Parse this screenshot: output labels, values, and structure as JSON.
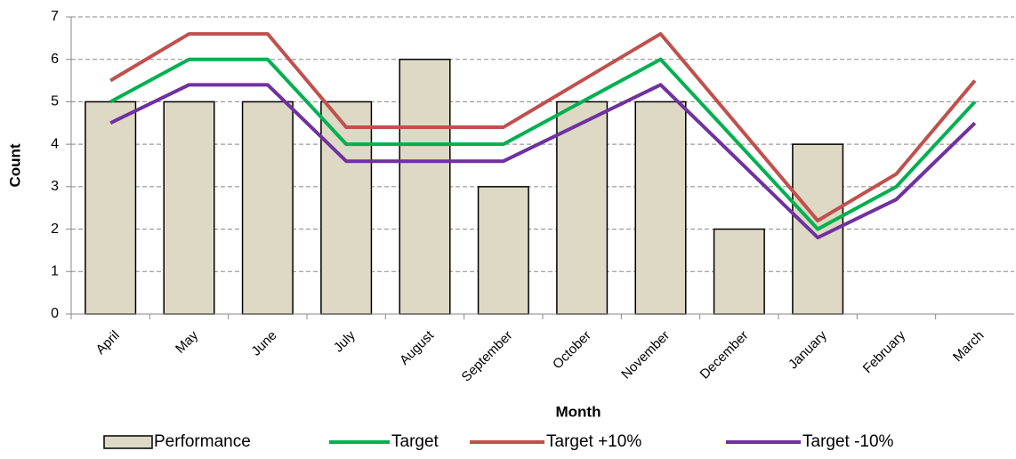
{
  "chart_data": {
    "type": "bar",
    "x_label": "Month",
    "y_label": "Count",
    "categories": [
      "April",
      "May",
      "June",
      "July",
      "August",
      "September",
      "October",
      "November",
      "December",
      "January",
      "February",
      "March"
    ],
    "series": [
      {
        "name": "Performance",
        "type": "bar",
        "color": "#ddd9c4",
        "values": [
          5,
          5,
          5,
          5,
          6,
          3,
          5,
          5,
          2,
          4,
          null,
          null
        ]
      },
      {
        "name": "Target",
        "type": "line",
        "color": "#00b050",
        "values": [
          5,
          6,
          6,
          4,
          4,
          4,
          5,
          6,
          4,
          2,
          3,
          5
        ]
      },
      {
        "name": "Target +10%",
        "type": "line",
        "color": "#c0504d",
        "values": [
          5.5,
          6.6,
          6.6,
          4.4,
          4.4,
          4.4,
          5.5,
          6.6,
          4.4,
          2.2,
          3.3,
          5.5
        ]
      },
      {
        "name": "Target -10%",
        "type": "line",
        "color": "#7030a0",
        "values": [
          4.5,
          5.4,
          5.4,
          3.6,
          3.6,
          3.6,
          4.5,
          5.4,
          3.6,
          1.8,
          2.7,
          4.5
        ]
      }
    ],
    "ylim": [
      0,
      7
    ],
    "yticks": [
      0,
      1,
      2,
      3,
      4,
      5,
      6,
      7
    ],
    "grid": true,
    "legend": "bottom"
  }
}
